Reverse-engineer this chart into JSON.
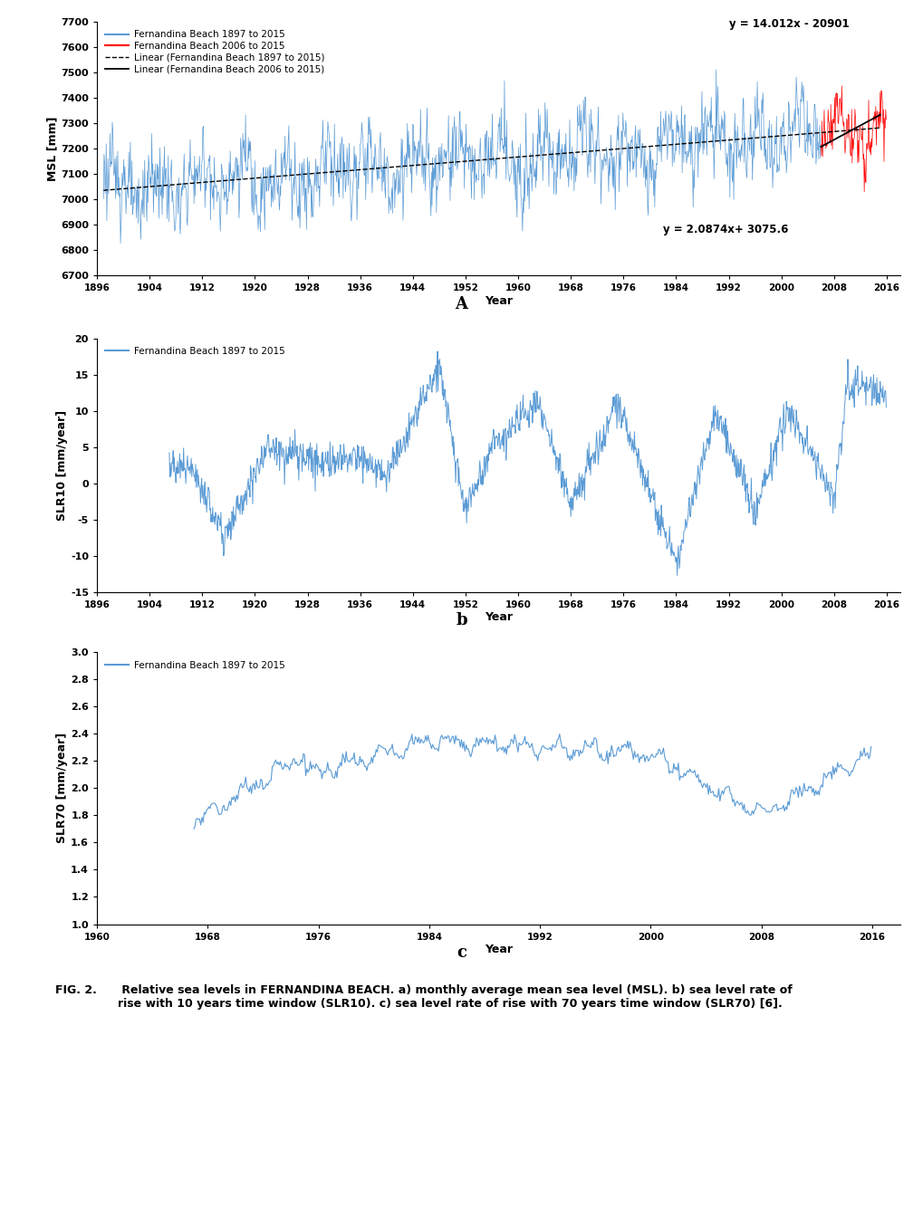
{
  "title_A": "A",
  "title_b": "b",
  "title_c": "c",
  "fig_caption_bold": "FIG. 2.",
  "fig_caption_normal": " Relative sea levels in FERNANDINA BEACH. a) monthly average mean sea level (MSL). b) sea level rate of\nrise with 10 years time window (SLR10). c) sea level rate of rise with 70 years time window (SLR70) [6].",
  "panel_A": {
    "ylabel": "MSL [mm]",
    "xlabel": "Year",
    "ylim": [
      6700,
      7700
    ],
    "xlim": [
      1896,
      2018
    ],
    "yticks": [
      6700,
      6800,
      6900,
      7000,
      7100,
      7200,
      7300,
      7400,
      7500,
      7600,
      7700
    ],
    "xticks": [
      1896,
      1904,
      1912,
      1920,
      1928,
      1936,
      1944,
      1952,
      1960,
      1968,
      1976,
      1984,
      1992,
      2000,
      2008,
      2016
    ],
    "color_blue": "#5B9BD5",
    "color_red": "#FF0000",
    "legend_entries": [
      "Fernandina Beach 1897 to 2015",
      "Fernandina Beach 2006 to 2015",
      "Linear (Fernandina Beach 1897 to 2015)",
      "Linear (Fernandina Beach 2006 to 2015)"
    ],
    "eq_long": "y = 2.0874x+ 3075.6",
    "eq_short": "y = 14.012x - 20901",
    "trend_long_slope": 2.0874,
    "trend_long_intercept": 3075.6,
    "trend_short_slope": 14.012,
    "trend_short_intercept": -20901,
    "trend_per_year": 2.0874
  },
  "panel_b": {
    "ylabel": "SLR10 [mm/year]",
    "xlabel": "Year",
    "ylim": [
      -15,
      20
    ],
    "xlim": [
      1896,
      2018
    ],
    "yticks": [
      -15,
      -10,
      -5,
      0,
      5,
      10,
      15,
      20
    ],
    "xticks": [
      1896,
      1904,
      1912,
      1920,
      1928,
      1936,
      1944,
      1952,
      1960,
      1968,
      1976,
      1984,
      1992,
      2000,
      2008,
      2016
    ],
    "color_blue": "#5B9BD5",
    "legend_entries": [
      "Fernandina Beach 1897 to 2015"
    ]
  },
  "panel_c": {
    "ylabel": "SLR70 [mm/year]",
    "xlabel": "Year",
    "ylim": [
      1.0,
      3.0
    ],
    "xlim": [
      1960,
      2018
    ],
    "yticks": [
      1.0,
      1.2,
      1.4,
      1.6,
      1.8,
      2.0,
      2.2,
      2.4,
      2.6,
      2.8,
      3.0
    ],
    "xticks": [
      1960,
      1968,
      1976,
      1984,
      1992,
      2000,
      2008,
      2016
    ],
    "color_blue": "#5B9BD5",
    "legend_entries": [
      "Fernandina Beach 1897 to 2015"
    ]
  }
}
